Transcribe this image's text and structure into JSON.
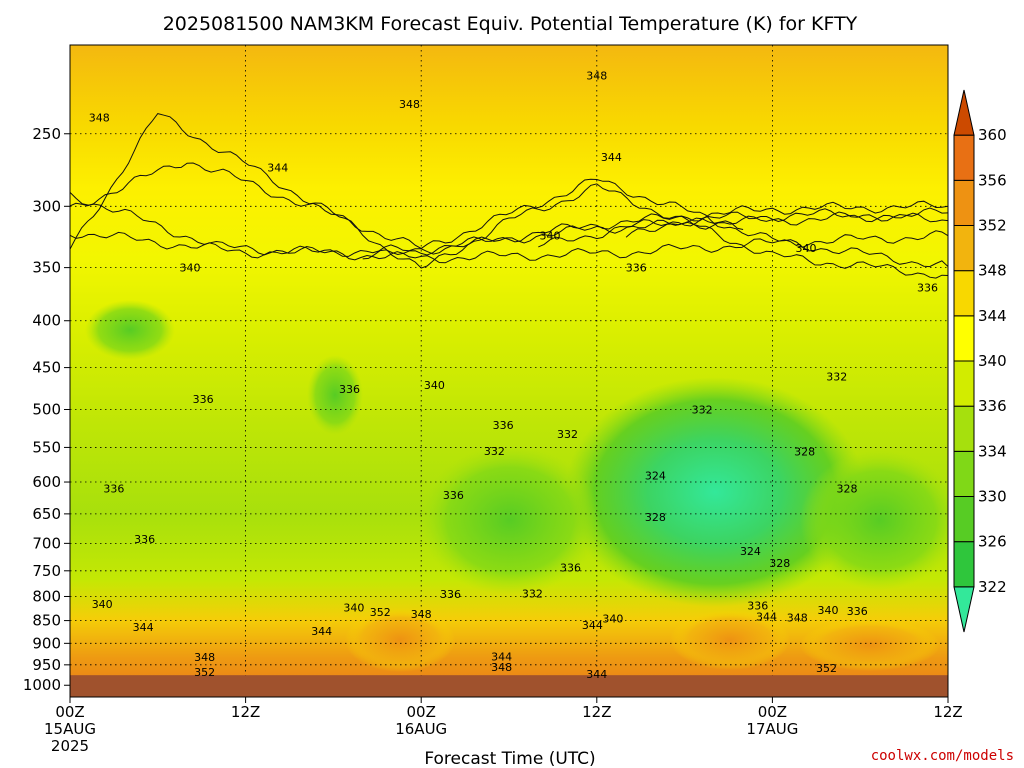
{
  "chart_data": {
    "type": "heatmap",
    "title": "2025081500 NAM3KM Forecast Equiv. Potential Temperature (K) for KFTY",
    "xlabel": "Forecast Time (UTC)",
    "ylabel": "",
    "x_tick_labels": [
      {
        "hour": 0,
        "lines": [
          "00Z",
          "15AUG",
          "2025"
        ]
      },
      {
        "hour": 12,
        "lines": [
          "12Z"
        ]
      },
      {
        "hour": 24,
        "lines": [
          "00Z",
          "16AUG"
        ]
      },
      {
        "hour": 36,
        "lines": [
          "12Z"
        ]
      },
      {
        "hour": 48,
        "lines": [
          "00Z",
          "17AUG"
        ]
      },
      {
        "hour": 60,
        "lines": [
          "12Z"
        ]
      }
    ],
    "xlim": [
      0,
      60
    ],
    "y_ticks": [
      250,
      300,
      350,
      400,
      450,
      500,
      550,
      600,
      650,
      700,
      750,
      800,
      850,
      900,
      950,
      1000
    ],
    "y_scale": "log",
    "ylim": [
      200,
      1030
    ],
    "ground_level_hpa": 975,
    "grid": "dotted",
    "colorbar": {
      "labels": [
        322,
        326,
        330,
        334,
        336,
        340,
        344,
        348,
        352,
        356,
        360
      ],
      "colors": [
        "#33e89a",
        "#2fc63c",
        "#57cc24",
        "#80d817",
        "#a6e00d",
        "#d2ec00",
        "#ffff00",
        "#f8d800",
        "#f2b40e",
        "#ee9212",
        "#e87014",
        "#cc4a00"
      ]
    },
    "series": [
      {
        "level": 348,
        "points": [
          [
            0,
            335
          ],
          [
            6,
            238
          ],
          [
            18,
            306
          ],
          [
            24,
            352
          ],
          [
            30,
            311
          ],
          [
            36,
            286
          ],
          [
            48,
            340
          ],
          [
            60,
            357
          ]
        ]
      },
      {
        "level": 344,
        "points": [
          [
            0,
            302
          ],
          [
            8,
            267
          ],
          [
            24,
            334
          ],
          [
            36,
            281
          ],
          [
            48,
            327
          ],
          [
            60,
            349
          ]
        ]
      },
      {
        "level": 340,
        "points": [
          [
            0,
            291
          ],
          [
            10,
            332
          ],
          [
            24,
            342
          ],
          [
            38,
            337
          ],
          [
            48,
            329
          ],
          [
            60,
            323
          ]
        ]
      },
      {
        "level": 336,
        "points": [
          [
            0,
            320
          ],
          [
            12,
            337
          ],
          [
            24,
            335
          ],
          [
            36,
            317
          ],
          [
            48,
            311
          ],
          [
            60,
            305
          ]
        ]
      },
      {
        "level": 332,
        "points": [
          [
            20,
            342
          ],
          [
            28,
            328
          ],
          [
            36,
            314
          ],
          [
            48,
            302
          ],
          [
            60,
            300
          ]
        ]
      },
      {
        "level": 328,
        "points": [
          [
            32,
            332
          ],
          [
            38,
            316
          ],
          [
            44,
            309
          ],
          [
            52,
            306
          ],
          [
            60,
            311
          ]
        ]
      },
      {
        "level": 324,
        "points": [
          [
            38,
            325
          ],
          [
            42,
            309
          ],
          [
            46,
            318
          ]
        ]
      }
    ],
    "contour_labels": [
      {
        "text": "348",
        "hour": 2.0,
        "hpa": 240
      },
      {
        "text": "348",
        "hour": 23.2,
        "hpa": 232
      },
      {
        "text": "348",
        "hour": 36.0,
        "hpa": 216
      },
      {
        "text": "344",
        "hour": 14.2,
        "hpa": 272
      },
      {
        "text": "344",
        "hour": 37.0,
        "hpa": 265
      },
      {
        "text": "340",
        "hour": 32.8,
        "hpa": 323
      },
      {
        "text": "340",
        "hour": 50.3,
        "hpa": 333
      },
      {
        "text": "336",
        "hour": 38.7,
        "hpa": 350
      },
      {
        "text": "336",
        "hour": 58.6,
        "hpa": 368
      },
      {
        "text": "340",
        "hour": 8.2,
        "hpa": 350
      },
      {
        "text": "340",
        "hour": 24.9,
        "hpa": 470
      },
      {
        "text": "336",
        "hour": 9.1,
        "hpa": 487
      },
      {
        "text": "336",
        "hour": 19.1,
        "hpa": 475
      },
      {
        "text": "336",
        "hour": 29.6,
        "hpa": 520
      },
      {
        "text": "332",
        "hour": 29.0,
        "hpa": 555
      },
      {
        "text": "332",
        "hour": 34.0,
        "hpa": 532
      },
      {
        "text": "332",
        "hour": 43.2,
        "hpa": 500
      },
      {
        "text": "332",
        "hour": 52.4,
        "hpa": 460
      },
      {
        "text": "328",
        "hour": 50.2,
        "hpa": 556
      },
      {
        "text": "328",
        "hour": 53.1,
        "hpa": 610
      },
      {
        "text": "324",
        "hour": 40.0,
        "hpa": 590
      },
      {
        "text": "328",
        "hour": 40.0,
        "hpa": 655
      },
      {
        "text": "336",
        "hour": 3.0,
        "hpa": 610
      },
      {
        "text": "336",
        "hour": 26.2,
        "hpa": 620
      },
      {
        "text": "336",
        "hour": 5.1,
        "hpa": 692
      },
      {
        "text": "336",
        "hour": 34.2,
        "hpa": 744
      },
      {
        "text": "336",
        "hour": 26.0,
        "hpa": 795
      },
      {
        "text": "332",
        "hour": 31.6,
        "hpa": 794
      },
      {
        "text": "340",
        "hour": 2.2,
        "hpa": 815
      },
      {
        "text": "340",
        "hour": 19.4,
        "hpa": 822
      },
      {
        "text": "352",
        "hour": 21.2,
        "hpa": 832
      },
      {
        "text": "348",
        "hour": 24.0,
        "hpa": 836
      },
      {
        "text": "344",
        "hour": 5.0,
        "hpa": 864
      },
      {
        "text": "344",
        "hour": 17.2,
        "hpa": 872
      },
      {
        "text": "344",
        "hour": 35.7,
        "hpa": 860
      },
      {
        "text": "340",
        "hour": 37.1,
        "hpa": 846
      },
      {
        "text": "348",
        "hour": 9.2,
        "hpa": 932
      },
      {
        "text": "352",
        "hour": 9.2,
        "hpa": 967
      },
      {
        "text": "344",
        "hour": 29.5,
        "hpa": 930
      },
      {
        "text": "348",
        "hour": 29.5,
        "hpa": 955
      },
      {
        "text": "344",
        "hour": 36.0,
        "hpa": 972
      },
      {
        "text": "336",
        "hour": 47.0,
        "hpa": 818
      },
      {
        "text": "344",
        "hour": 47.6,
        "hpa": 841
      },
      {
        "text": "348",
        "hour": 49.7,
        "hpa": 843
      },
      {
        "text": "340",
        "hour": 51.8,
        "hpa": 828
      },
      {
        "text": "336",
        "hour": 53.8,
        "hpa": 830
      },
      {
        "text": "352",
        "hour": 51.7,
        "hpa": 957
      },
      {
        "text": "324",
        "hour": 46.5,
        "hpa": 714
      },
      {
        "text": "328",
        "hour": 48.5,
        "hpa": 735
      }
    ]
  },
  "credit": "coolwx.com/models"
}
